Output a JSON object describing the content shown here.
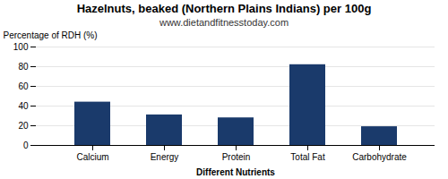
{
  "chart_data": {
    "type": "bar",
    "title": "Hazelnuts, beaked (Northern Plains Indians) per 100g",
    "subtitle": "www.dietandfitnesstoday.com",
    "xlabel": "Different Nutrients",
    "ylabel": "Percentage of RDH (%)",
    "categories": [
      "Calcium",
      "Energy",
      "Protein",
      "Total Fat",
      "Carbohydrate"
    ],
    "values": [
      44,
      31,
      28,
      82,
      19
    ],
    "color": "#1a3a6b",
    "ylim": [
      0,
      100
    ],
    "yticks": [
      0,
      20,
      40,
      60,
      80,
      100
    ],
    "grid": true
  }
}
